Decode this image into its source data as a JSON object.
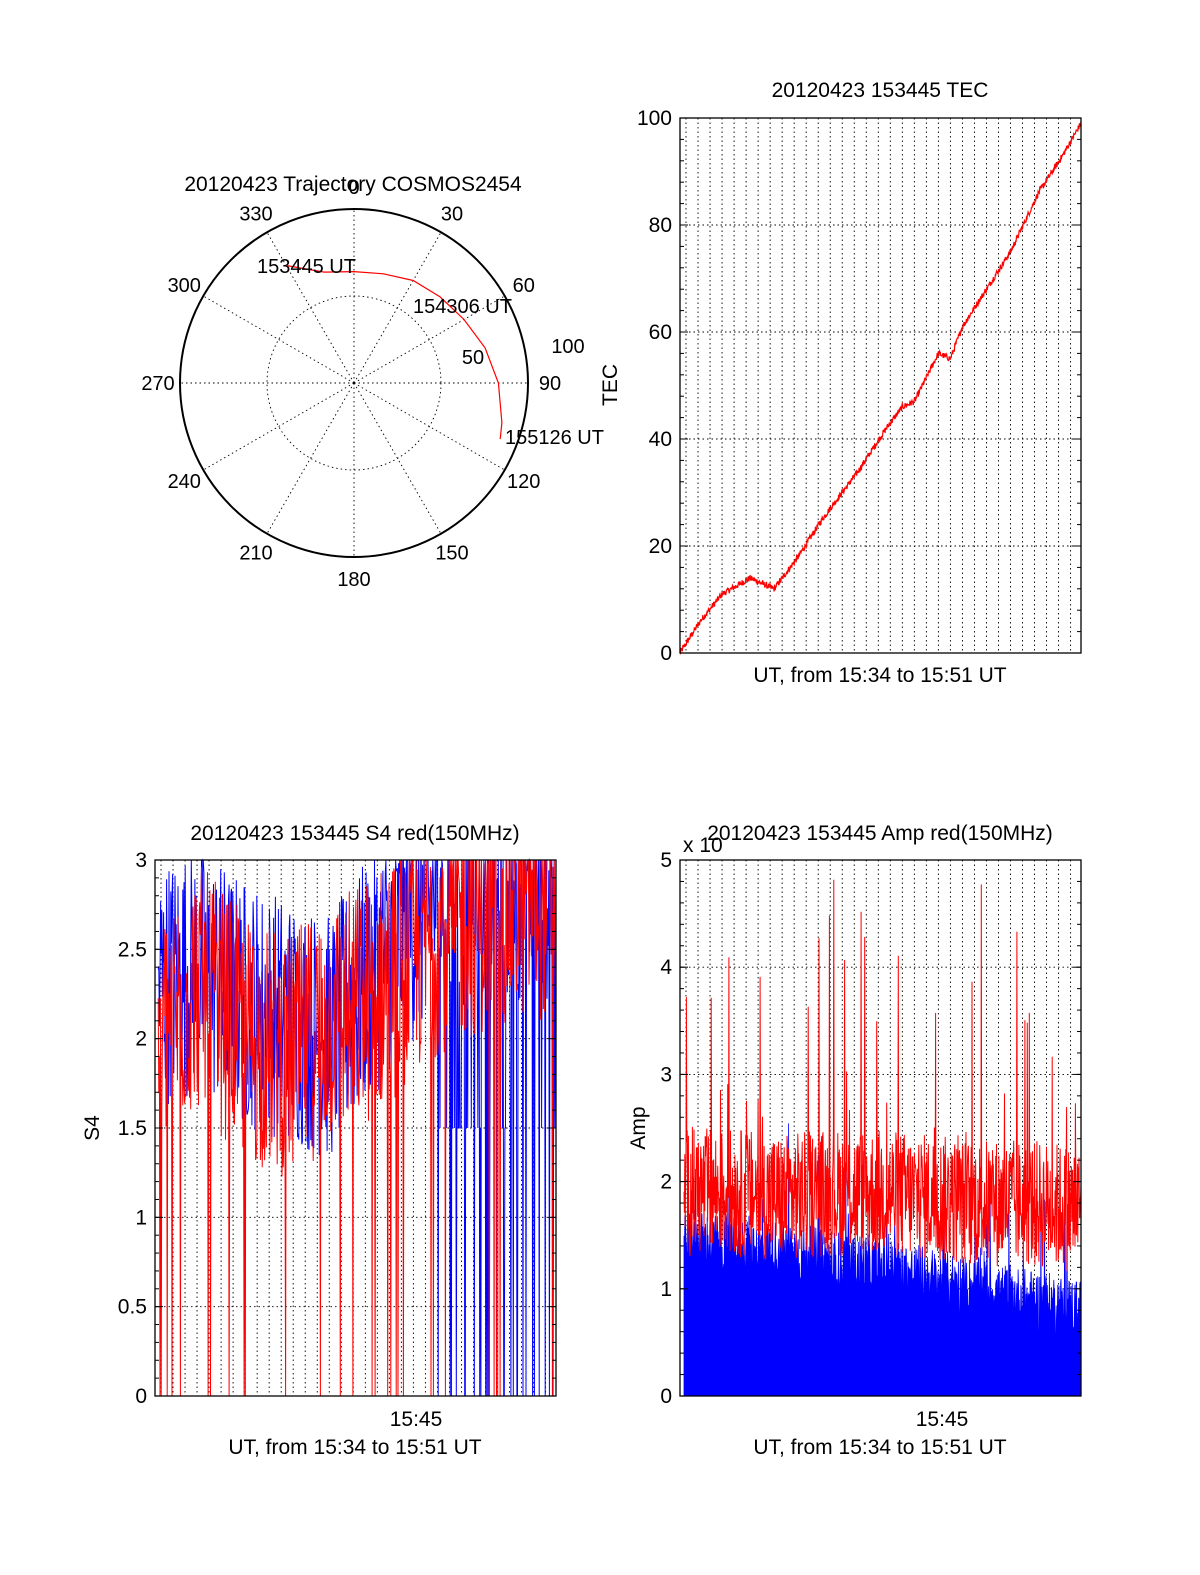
{
  "figure": {
    "polar": {
      "title": "20120423 Trajectory COSMOS2454",
      "azimuth_labels": [
        "0",
        "30",
        "60",
        "90",
        "120",
        "150",
        "180",
        "210",
        "240",
        "270",
        "300",
        "330"
      ],
      "ring_labels": [
        "50",
        "100"
      ],
      "time_labels": [
        "153445 UT",
        "154306 UT",
        "155126 UT"
      ]
    },
    "tec": {
      "title": "20120423 153445 TEC",
      "ylabel": "TEC",
      "xlabel": "UT, from 15:34 to 15:51 UT",
      "yticks": [
        "0",
        "20",
        "40",
        "60",
        "80",
        "100"
      ]
    },
    "s4": {
      "title": "20120423 153445 S4 red(150MHz)",
      "ylabel": "S4",
      "xlabel": "UT, from 15:34 to 15:51 UT",
      "xtick": "15:45",
      "yticks": [
        "0",
        "0.5",
        "1",
        "1.5",
        "2",
        "2.5",
        "3"
      ]
    },
    "amp": {
      "title": "20120423 153445 Amp red(150MHz)",
      "ylabel": "Amp",
      "xlabel": "UT, from 15:34 to 15:51 UT",
      "xtick": "15:45",
      "scale_label": "x 10",
      "yticks": [
        "0",
        "1",
        "2",
        "3",
        "4",
        "5"
      ]
    }
  },
  "chart_data": [
    {
      "type": "scatter",
      "name": "polar-trajectory",
      "title": "20120423 Trajectory COSMOS2454",
      "coordinate_system": "polar (azimuth deg clockwise from north, radial = elevation from center 0 to rim 100)",
      "rlim": [
        0,
        100
      ],
      "azimuth_ticks_deg": [
        0,
        30,
        60,
        90,
        120,
        150,
        180,
        210,
        240,
        270,
        300,
        330
      ],
      "color": "#ff0000",
      "series": [
        {
          "values": [
            {
              "az": 330,
              "r": 78
            },
            {
              "az": 345,
              "r": 66
            },
            {
              "az": 0,
              "r": 64
            },
            {
              "az": 15,
              "r": 65
            },
            {
              "az": 30,
              "r": 68
            },
            {
              "az": 45,
              "r": 70
            },
            {
              "az": 60,
              "r": 73
            },
            {
              "az": 75,
              "r": 78
            },
            {
              "az": 90,
              "r": 83
            },
            {
              "az": 105,
              "r": 88
            },
            {
              "az": 111,
              "r": 90
            }
          ]
        }
      ],
      "annotations": [
        {
          "text": "153445 UT",
          "az": 330,
          "r": 78
        },
        {
          "text": "154306 UT",
          "az": 50,
          "r": 72
        },
        {
          "text": "155126 UT",
          "az": 111,
          "r": 90
        }
      ]
    },
    {
      "type": "line",
      "name": "tec",
      "title": "20120423 153445 TEC",
      "xlabel": "UT, from 15:34 to 15:51 UT",
      "ylabel": "TEC",
      "xlim": [
        "15:34:45",
        "15:51:26"
      ],
      "ylim": [
        0,
        100
      ],
      "grid": true,
      "color": "#ff0000",
      "x": [
        "15:34:45",
        "15:35:36",
        "15:36:30",
        "15:37:40",
        "15:38:40",
        "15:39:40",
        "15:40:40",
        "15:41:30",
        "15:42:10",
        "15:43:20",
        "15:44:00",
        "15:44:30",
        "15:45:30",
        "15:46:00",
        "15:46:30",
        "15:47:30",
        "15:48:30",
        "15:49:40",
        "15:50:40",
        "15:51:26"
      ],
      "values": [
        0,
        6,
        11,
        14,
        12,
        18,
        25,
        30,
        34,
        42,
        46,
        47,
        56,
        55,
        61,
        68,
        75,
        86,
        93,
        99
      ]
    },
    {
      "type": "line",
      "name": "s4",
      "title": "20120423 153445 S4 red(150MHz)",
      "xlabel": "UT, from 15:34 to 15:51 UT",
      "ylabel": "S4",
      "xlim": [
        "15:34:45",
        "15:51:26"
      ],
      "ylim": [
        0,
        3
      ],
      "grid": true,
      "x_ticks": [
        "15:45"
      ],
      "series": [
        {
          "color": "#0000ff",
          "style": "dense noisy trace",
          "x": [
            "15:34:45",
            "15:36:30",
            "15:38:30",
            "15:40:30",
            "15:42:00",
            "15:43:30",
            "15:45:00",
            "15:46:30",
            "15:48:00",
            "15:50:00",
            "15:51:26"
          ],
          "values": [
            2.3,
            2.4,
            2.2,
            2.1,
            2.0,
            2.3,
            2.6,
            2.8,
            2.9,
            2.9,
            2.9
          ]
        },
        {
          "color": "#ff0000",
          "style": "dense noisy trace with drop-outs to 0",
          "x": [
            "15:34:45",
            "15:36:30",
            "15:38:30",
            "15:40:30",
            "15:42:00",
            "15:43:30",
            "15:45:00",
            "15:46:30",
            "15:48:00",
            "15:50:00",
            "15:51:26"
          ],
          "values": [
            2.0,
            2.3,
            2.0,
            1.9,
            2.1,
            2.2,
            2.4,
            2.6,
            2.7,
            2.8,
            2.8
          ]
        }
      ]
    },
    {
      "type": "line",
      "name": "amp",
      "title": "20120423 153445 Amp red(150MHz)",
      "xlabel": "UT, from 15:34 to 15:51 UT",
      "ylabel": "Amp",
      "xlim": [
        "15:34:45",
        "15:51:26"
      ],
      "ylim": [
        0,
        5
      ],
      "grid": true,
      "x_ticks": [
        "15:45"
      ],
      "series": [
        {
          "color": "#0000ff",
          "style": "filled dense trace",
          "x": [
            "15:34:45",
            "15:37:00",
            "15:39:00",
            "15:41:00",
            "15:43:00",
            "15:45:00",
            "15:47:00",
            "15:49:00",
            "15:51:26"
          ],
          "values": [
            1.45,
            1.4,
            1.35,
            1.25,
            1.2,
            1.1,
            1.0,
            0.9,
            0.8
          ]
        },
        {
          "color": "#ff0000",
          "style": "dense noisy trace",
          "x": [
            "15:34:45",
            "15:37:00",
            "15:39:00",
            "15:41:00",
            "15:43:00",
            "15:45:00",
            "15:47:00",
            "15:49:00",
            "15:51:26"
          ],
          "values": [
            1.9,
            1.9,
            1.85,
            1.9,
            1.9,
            1.85,
            1.8,
            1.8,
            1.75
          ]
        }
      ]
    }
  ]
}
